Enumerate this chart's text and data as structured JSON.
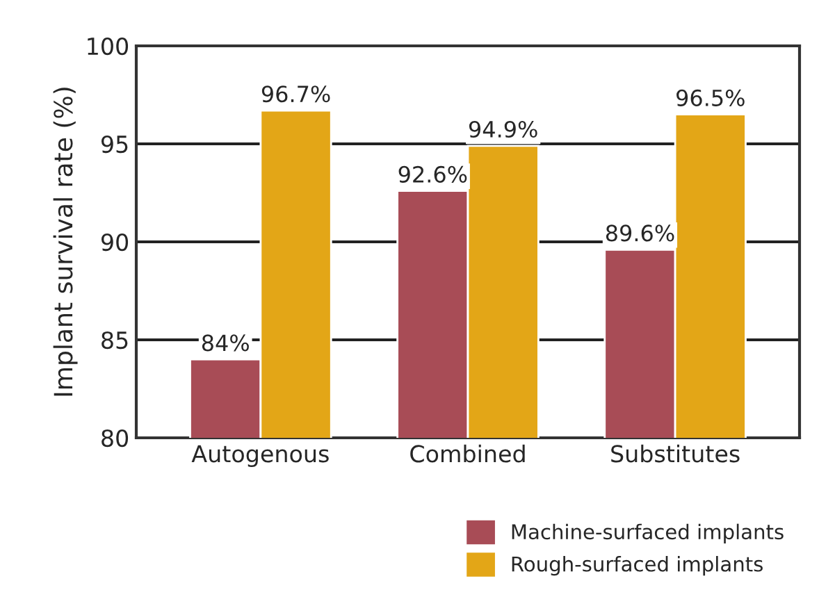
{
  "chart_data": {
    "type": "bar",
    "ylabel": "Implant survival rate (%)",
    "categories": [
      "Autogenous",
      "Combined",
      "Substitutes"
    ],
    "series": [
      {
        "name": "Machine-surfaced implants",
        "color": "#a84c56",
        "values": [
          84,
          92.6,
          89.6
        ],
        "value_labels": [
          "84%",
          "92.6%",
          "89.6%"
        ]
      },
      {
        "name": "Rough-surfaced implants",
        "color": "#e3a617",
        "values": [
          96.7,
          94.9,
          96.5
        ],
        "value_labels": [
          "96.7%",
          "94.9%",
          "96.5%"
        ]
      }
    ],
    "ylim": [
      80,
      100
    ],
    "yticks": [
      80,
      85,
      90,
      95,
      100
    ],
    "grid": "y",
    "legend": "bottom right"
  }
}
